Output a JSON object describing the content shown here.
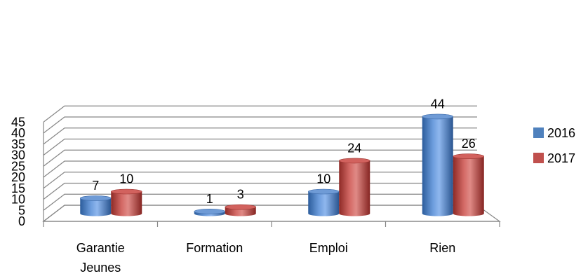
{
  "chart_data": {
    "type": "bar",
    "style": "3d-cylinder",
    "categories": [
      [
        "Garantie",
        "Jeunes"
      ],
      [
        "Formation"
      ],
      [
        "Emploi"
      ],
      [
        "Rien"
      ]
    ],
    "series": [
      {
        "name": "2016",
        "values": [
          7,
          1,
          10,
          44
        ],
        "color": "#4f81bd"
      },
      {
        "name": "2017",
        "values": [
          10,
          3,
          24,
          26
        ],
        "color": "#c0504d"
      }
    ],
    "y_ticks": [
      "0",
      "5",
      "10",
      "15",
      "20",
      "25",
      "30",
      "35",
      "40",
      "45"
    ],
    "ylim": [
      0,
      45
    ],
    "grid": true,
    "legend_position": "right",
    "data_labels": true
  }
}
